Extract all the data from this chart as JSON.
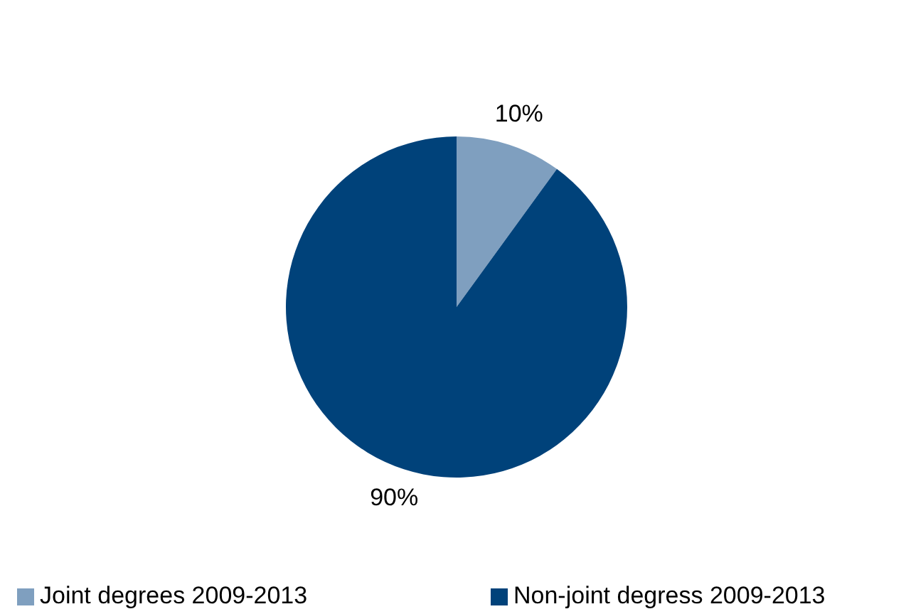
{
  "chart_data": {
    "type": "pie",
    "categories": [
      "Joint degrees 2009-2013",
      "Non-joint degress 2009-2013"
    ],
    "values": [
      10,
      90
    ],
    "colors": [
      "#7f9fbf",
      "#00427a"
    ],
    "value_labels": [
      "10%",
      "90%"
    ],
    "legend": "bottom"
  }
}
